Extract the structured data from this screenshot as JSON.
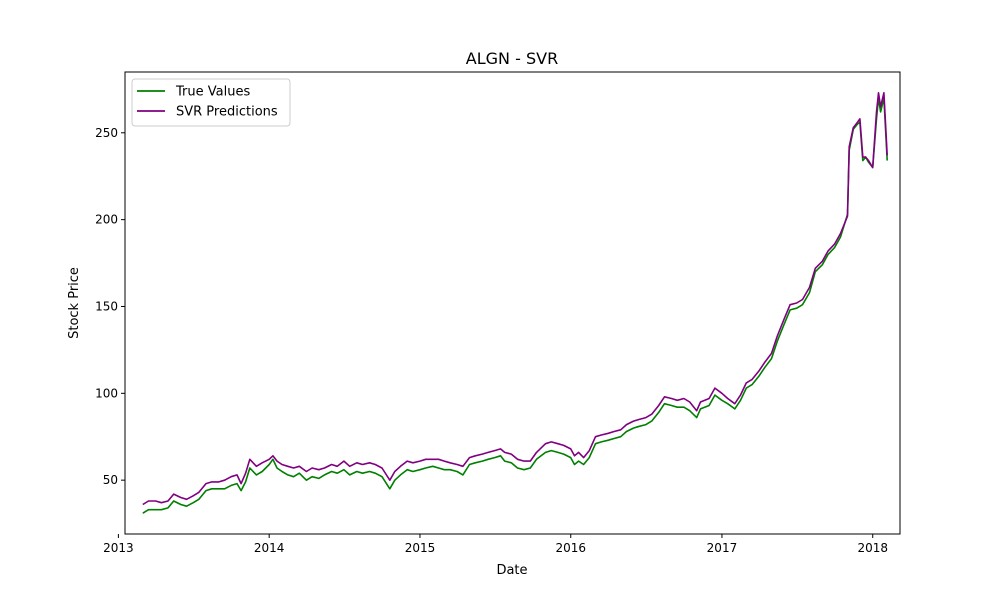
{
  "chart_data": {
    "type": "line",
    "title": "ALGN - SVR",
    "xlabel": "Date",
    "ylabel": "Stock Price",
    "x_ticks": [
      "2013",
      "2014",
      "2015",
      "2016",
      "2017",
      "2018"
    ],
    "y_ticks": [
      50,
      100,
      150,
      200,
      250
    ],
    "xlim": [
      "2013-01-17",
      "2018-03-08"
    ],
    "ylim": [
      19,
      285
    ],
    "legend_position": "top-left",
    "grid": false,
    "series": [
      {
        "name": "True Values",
        "color": "#008000",
        "points": [
          [
            "2013-03-01",
            31
          ],
          [
            "2013-03-15",
            33
          ],
          [
            "2013-04-01",
            33
          ],
          [
            "2013-04-15",
            33
          ],
          [
            "2013-05-01",
            34
          ],
          [
            "2013-05-15",
            38
          ],
          [
            "2013-06-01",
            36
          ],
          [
            "2013-06-15",
            35
          ],
          [
            "2013-07-01",
            37
          ],
          [
            "2013-07-15",
            39
          ],
          [
            "2013-08-01",
            44
          ],
          [
            "2013-08-15",
            45
          ],
          [
            "2013-09-01",
            45
          ],
          [
            "2013-09-15",
            45
          ],
          [
            "2013-10-01",
            47
          ],
          [
            "2013-10-15",
            48
          ],
          [
            "2013-10-25",
            44
          ],
          [
            "2013-11-05",
            49
          ],
          [
            "2013-11-15",
            57
          ],
          [
            "2013-12-01",
            53
          ],
          [
            "2013-12-15",
            55
          ],
          [
            "2014-01-01",
            59
          ],
          [
            "2014-01-10",
            62
          ],
          [
            "2014-01-20",
            57
          ],
          [
            "2014-02-01",
            55
          ],
          [
            "2014-02-15",
            53
          ],
          [
            "2014-03-01",
            52
          ],
          [
            "2014-03-15",
            54
          ],
          [
            "2014-04-01",
            50
          ],
          [
            "2014-04-15",
            52
          ],
          [
            "2014-05-01",
            51
          ],
          [
            "2014-05-15",
            53
          ],
          [
            "2014-06-01",
            55
          ],
          [
            "2014-06-15",
            54
          ],
          [
            "2014-07-01",
            56
          ],
          [
            "2014-07-15",
            53
          ],
          [
            "2014-08-01",
            55
          ],
          [
            "2014-08-15",
            54
          ],
          [
            "2014-09-01",
            55
          ],
          [
            "2014-09-15",
            54
          ],
          [
            "2014-10-01",
            52
          ],
          [
            "2014-10-20",
            45
          ],
          [
            "2014-11-01",
            50
          ],
          [
            "2014-11-15",
            53
          ],
          [
            "2014-12-01",
            56
          ],
          [
            "2014-12-15",
            55
          ],
          [
            "2015-01-01",
            56
          ],
          [
            "2015-01-15",
            57
          ],
          [
            "2015-02-01",
            58
          ],
          [
            "2015-02-15",
            57
          ],
          [
            "2015-03-01",
            56
          ],
          [
            "2015-03-15",
            56
          ],
          [
            "2015-04-01",
            55
          ],
          [
            "2015-04-15",
            53
          ],
          [
            "2015-05-01",
            59
          ],
          [
            "2015-05-15",
            60
          ],
          [
            "2015-06-01",
            61
          ],
          [
            "2015-06-15",
            62
          ],
          [
            "2015-07-01",
            63
          ],
          [
            "2015-07-15",
            64
          ],
          [
            "2015-07-25",
            61
          ],
          [
            "2015-08-10",
            60
          ],
          [
            "2015-08-25",
            57
          ],
          [
            "2015-09-10",
            56
          ],
          [
            "2015-09-25",
            57
          ],
          [
            "2015-10-10",
            62
          ],
          [
            "2015-11-01",
            66
          ],
          [
            "2015-11-15",
            67
          ],
          [
            "2015-12-01",
            66
          ],
          [
            "2015-12-15",
            65
          ],
          [
            "2016-01-01",
            63
          ],
          [
            "2016-01-10",
            59
          ],
          [
            "2016-01-20",
            61
          ],
          [
            "2016-02-01",
            59
          ],
          [
            "2016-02-15",
            63
          ],
          [
            "2016-03-01",
            71
          ],
          [
            "2016-03-15",
            72
          ],
          [
            "2016-04-01",
            73
          ],
          [
            "2016-04-15",
            74
          ],
          [
            "2016-05-01",
            75
          ],
          [
            "2016-05-15",
            78
          ],
          [
            "2016-06-01",
            80
          ],
          [
            "2016-06-15",
            81
          ],
          [
            "2016-07-01",
            82
          ],
          [
            "2016-07-15",
            84
          ],
          [
            "2016-08-01",
            89
          ],
          [
            "2016-08-15",
            94
          ],
          [
            "2016-09-01",
            93
          ],
          [
            "2016-09-15",
            92
          ],
          [
            "2016-10-01",
            92
          ],
          [
            "2016-10-15",
            90
          ],
          [
            "2016-11-01",
            86
          ],
          [
            "2016-11-10",
            91
          ],
          [
            "2016-12-01",
            93
          ],
          [
            "2016-12-15",
            99
          ],
          [
            "2017-01-01",
            96
          ],
          [
            "2017-01-15",
            94
          ],
          [
            "2017-02-01",
            91
          ],
          [
            "2017-02-15",
            96
          ],
          [
            "2017-03-01",
            103
          ],
          [
            "2017-03-15",
            105
          ],
          [
            "2017-04-01",
            110
          ],
          [
            "2017-04-15",
            115
          ],
          [
            "2017-05-01",
            120
          ],
          [
            "2017-05-15",
            130
          ],
          [
            "2017-06-01",
            140
          ],
          [
            "2017-06-15",
            148
          ],
          [
            "2017-07-01",
            149
          ],
          [
            "2017-07-15",
            151
          ],
          [
            "2017-08-01",
            158
          ],
          [
            "2017-08-15",
            170
          ],
          [
            "2017-09-01",
            174
          ],
          [
            "2017-09-15",
            180
          ],
          [
            "2017-10-01",
            184
          ],
          [
            "2017-10-15",
            190
          ],
          [
            "2017-11-01",
            203
          ],
          [
            "2017-11-05",
            240
          ],
          [
            "2017-11-15",
            252
          ],
          [
            "2017-11-25",
            255
          ],
          [
            "2017-12-01",
            256
          ],
          [
            "2017-12-08",
            234
          ],
          [
            "2017-12-15",
            236
          ],
          [
            "2017-12-22",
            233
          ],
          [
            "2018-01-01",
            230
          ],
          [
            "2018-01-10",
            258
          ],
          [
            "2018-01-15",
            270
          ],
          [
            "2018-01-20",
            262
          ],
          [
            "2018-01-28",
            270
          ],
          [
            "2018-02-05",
            234
          ]
        ]
      },
      {
        "name": "SVR Predictions",
        "color": "#800080",
        "points": [
          [
            "2013-03-01",
            36
          ],
          [
            "2013-03-15",
            38
          ],
          [
            "2013-04-01",
            38
          ],
          [
            "2013-04-15",
            37
          ],
          [
            "2013-05-01",
            38
          ],
          [
            "2013-05-15",
            42
          ],
          [
            "2013-06-01",
            40
          ],
          [
            "2013-06-15",
            39
          ],
          [
            "2013-07-01",
            41
          ],
          [
            "2013-07-15",
            43
          ],
          [
            "2013-08-01",
            48
          ],
          [
            "2013-08-15",
            49
          ],
          [
            "2013-09-01",
            49
          ],
          [
            "2013-09-15",
            50
          ],
          [
            "2013-10-01",
            52
          ],
          [
            "2013-10-15",
            53
          ],
          [
            "2013-10-25",
            48
          ],
          [
            "2013-11-05",
            54
          ],
          [
            "2013-11-15",
            62
          ],
          [
            "2013-12-01",
            58
          ],
          [
            "2013-12-15",
            60
          ],
          [
            "2014-01-01",
            62
          ],
          [
            "2014-01-10",
            64
          ],
          [
            "2014-01-20",
            61
          ],
          [
            "2014-02-01",
            59
          ],
          [
            "2014-02-15",
            58
          ],
          [
            "2014-03-01",
            57
          ],
          [
            "2014-03-15",
            58
          ],
          [
            "2014-04-01",
            55
          ],
          [
            "2014-04-15",
            57
          ],
          [
            "2014-05-01",
            56
          ],
          [
            "2014-05-15",
            57
          ],
          [
            "2014-06-01",
            59
          ],
          [
            "2014-06-15",
            58
          ],
          [
            "2014-07-01",
            61
          ],
          [
            "2014-07-15",
            58
          ],
          [
            "2014-08-01",
            60
          ],
          [
            "2014-08-15",
            59
          ],
          [
            "2014-09-01",
            60
          ],
          [
            "2014-09-15",
            59
          ],
          [
            "2014-10-01",
            57
          ],
          [
            "2014-10-20",
            50
          ],
          [
            "2014-11-01",
            55
          ],
          [
            "2014-11-15",
            58
          ],
          [
            "2014-12-01",
            61
          ],
          [
            "2014-12-15",
            60
          ],
          [
            "2015-01-01",
            61
          ],
          [
            "2015-01-15",
            62
          ],
          [
            "2015-02-01",
            62
          ],
          [
            "2015-02-15",
            62
          ],
          [
            "2015-03-01",
            61
          ],
          [
            "2015-03-15",
            60
          ],
          [
            "2015-04-01",
            59
          ],
          [
            "2015-04-15",
            58
          ],
          [
            "2015-05-01",
            63
          ],
          [
            "2015-05-15",
            64
          ],
          [
            "2015-06-01",
            65
          ],
          [
            "2015-06-15",
            66
          ],
          [
            "2015-07-01",
            67
          ],
          [
            "2015-07-15",
            68
          ],
          [
            "2015-07-25",
            66
          ],
          [
            "2015-08-10",
            65
          ],
          [
            "2015-08-25",
            62
          ],
          [
            "2015-09-10",
            61
          ],
          [
            "2015-09-25",
            61
          ],
          [
            "2015-10-10",
            66
          ],
          [
            "2015-11-01",
            71
          ],
          [
            "2015-11-15",
            72
          ],
          [
            "2015-12-01",
            71
          ],
          [
            "2015-12-15",
            70
          ],
          [
            "2016-01-01",
            68
          ],
          [
            "2016-01-10",
            64
          ],
          [
            "2016-01-20",
            66
          ],
          [
            "2016-02-01",
            63
          ],
          [
            "2016-02-15",
            67
          ],
          [
            "2016-03-01",
            75
          ],
          [
            "2016-03-15",
            76
          ],
          [
            "2016-04-01",
            77
          ],
          [
            "2016-04-15",
            78
          ],
          [
            "2016-05-01",
            79
          ],
          [
            "2016-05-15",
            82
          ],
          [
            "2016-06-01",
            84
          ],
          [
            "2016-06-15",
            85
          ],
          [
            "2016-07-01",
            86
          ],
          [
            "2016-07-15",
            88
          ],
          [
            "2016-08-01",
            93
          ],
          [
            "2016-08-15",
            98
          ],
          [
            "2016-09-01",
            97
          ],
          [
            "2016-09-15",
            96
          ],
          [
            "2016-10-01",
            97
          ],
          [
            "2016-10-15",
            95
          ],
          [
            "2016-11-01",
            90
          ],
          [
            "2016-11-10",
            95
          ],
          [
            "2016-12-01",
            97
          ],
          [
            "2016-12-15",
            103
          ],
          [
            "2017-01-01",
            100
          ],
          [
            "2017-01-15",
            97
          ],
          [
            "2017-02-01",
            94
          ],
          [
            "2017-02-15",
            99
          ],
          [
            "2017-03-01",
            106
          ],
          [
            "2017-03-15",
            108
          ],
          [
            "2017-04-01",
            113
          ],
          [
            "2017-04-15",
            118
          ],
          [
            "2017-05-01",
            123
          ],
          [
            "2017-05-15",
            133
          ],
          [
            "2017-06-01",
            143
          ],
          [
            "2017-06-15",
            151
          ],
          [
            "2017-07-01",
            152
          ],
          [
            "2017-07-15",
            154
          ],
          [
            "2017-08-01",
            161
          ],
          [
            "2017-08-15",
            172
          ],
          [
            "2017-09-01",
            176
          ],
          [
            "2017-09-15",
            182
          ],
          [
            "2017-10-01",
            186
          ],
          [
            "2017-10-15",
            192
          ],
          [
            "2017-11-01",
            202
          ],
          [
            "2017-11-05",
            242
          ],
          [
            "2017-11-15",
            253
          ],
          [
            "2017-11-25",
            256
          ],
          [
            "2017-12-01",
            258
          ],
          [
            "2017-12-08",
            236
          ],
          [
            "2017-12-15",
            236
          ],
          [
            "2017-12-22",
            234
          ],
          [
            "2018-01-01",
            230
          ],
          [
            "2018-01-10",
            262
          ],
          [
            "2018-01-15",
            273
          ],
          [
            "2018-01-20",
            265
          ],
          [
            "2018-01-28",
            273
          ],
          [
            "2018-02-05",
            237
          ]
        ]
      }
    ]
  }
}
